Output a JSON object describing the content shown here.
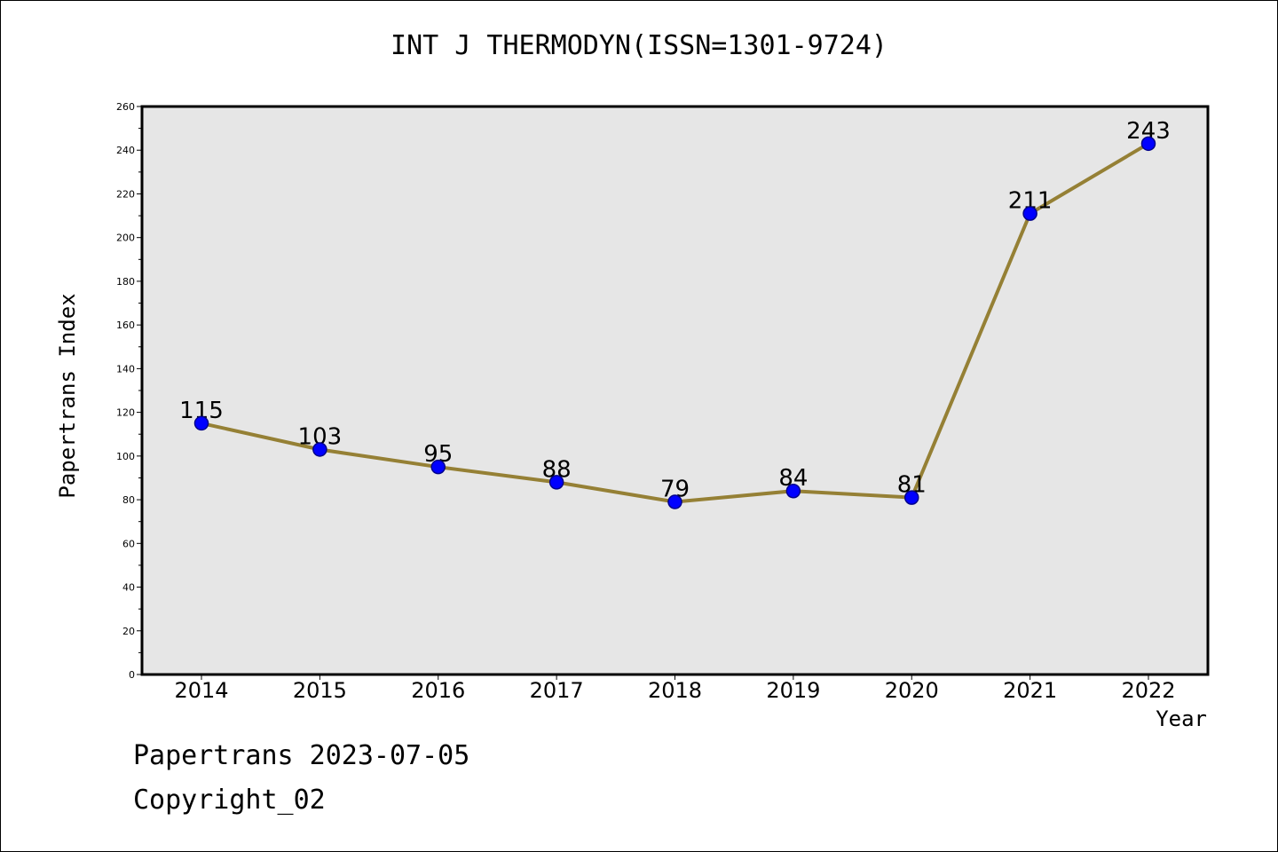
{
  "page": {
    "footer_date": "Papertrans 2023-07-05",
    "footer_copyright": "Copyright_02"
  },
  "chart_data": {
    "type": "line",
    "title": "INT J THERMODYN(ISSN=1301-9724)",
    "xlabel": "Year",
    "ylabel": "Papertrans Index",
    "categories": [
      "2014",
      "2015",
      "2016",
      "2017",
      "2018",
      "2019",
      "2020",
      "2021",
      "2022"
    ],
    "series": [
      {
        "values": [
          115,
          103,
          95,
          88,
          79,
          84,
          81,
          211,
          243
        ]
      }
    ],
    "data_labels": [
      "115",
      "103",
      "95",
      "88",
      "79",
      "84",
      "81",
      "211",
      "243"
    ],
    "ylim": [
      0,
      260
    ],
    "yticks": [
      0,
      20,
      40,
      60,
      80,
      100,
      120,
      140,
      160,
      180,
      200,
      220,
      240,
      260
    ],
    "grid": false,
    "legend": "none",
    "colors": {
      "line": "#958035",
      "marker_fill": "#0000ff",
      "marker_edge": "#00008b",
      "plot_background": "#e6e6e6",
      "axes_border": "#000000"
    }
  }
}
